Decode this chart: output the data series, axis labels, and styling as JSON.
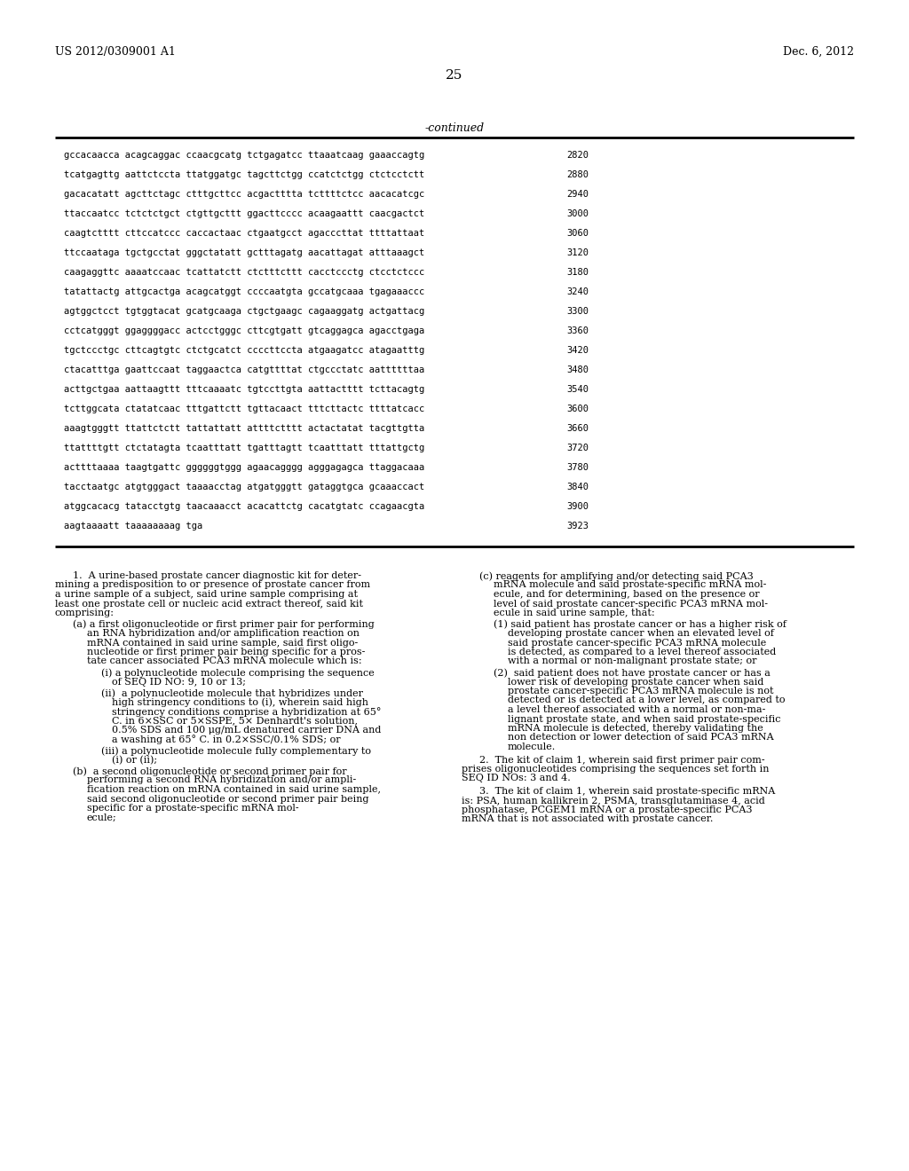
{
  "header_left": "US 2012/0309001 A1",
  "header_right": "Dec. 6, 2012",
  "page_number": "25",
  "continued_label": "-continued",
  "sequence_rows": [
    {
      "seq": "gccacaacca acagcaggac ccaacgcatg tctgagatcc ttaaatcaag gaaaccagtg",
      "num": "2820"
    },
    {
      "seq": "tcatgagttg aattctccta ttatggatgc tagcttctgg ccatctctgg ctctcctctt",
      "num": "2880"
    },
    {
      "seq": "gacacatatt agcttctagc ctttgcttcc acgactttta tcttttctcc aacacatcgc",
      "num": "2940"
    },
    {
      "seq": "ttaccaatcc tctctctgct ctgttgcttt ggacttcccc acaagaattt caacgactct",
      "num": "3000"
    },
    {
      "seq": "caagtctttt cttccatccc caccactaac ctgaatgcct agacccttat ttttattaat",
      "num": "3060"
    },
    {
      "seq": "ttccaataga tgctgcctat gggctatatt gctttagatg aacattagat atttaaagct",
      "num": "3120"
    },
    {
      "seq": "caagaggttc aaaatccaac tcattatctt ctctttcttt cacctccctg ctcctctccc",
      "num": "3180"
    },
    {
      "seq": "tatattactg attgcactga acagcatggt ccccaatgta gccatgcaaa tgagaaaccc",
      "num": "3240"
    },
    {
      "seq": "agtggctcct tgtggtacat gcatgcaaga ctgctgaagc cagaaggatg actgattacg",
      "num": "3300"
    },
    {
      "seq": "cctcatgggt ggaggggacc actcctgggc cttcgtgatt gtcaggagca agacctgaga",
      "num": "3360"
    },
    {
      "seq": "tgctccctgc cttcagtgtc ctctgcatct ccccttccta atgaagatcc atagaatttg",
      "num": "3420"
    },
    {
      "seq": "ctacatttga gaattccaat taggaactca catgttttat ctgccctatc aattttttaa",
      "num": "3480"
    },
    {
      "seq": "acttgctgaa aattaagttt tttcaaaatc tgtccttgta aattactttt tcttacagtg",
      "num": "3540"
    },
    {
      "seq": "tcttggcata ctatatcaac tttgattctt tgttacaact tttcttactc ttttatcacc",
      "num": "3600"
    },
    {
      "seq": "aaagtgggtt ttattctctt tattattatt attttctttt actactatat tacgttgtta",
      "num": "3660"
    },
    {
      "seq": "ttattttgtt ctctatagta tcaatttatt tgatttagtt tcaatttatt tttattgctg",
      "num": "3720"
    },
    {
      "seq": "acttttaaaa taagtgattc ggggggtggg agaacagggg agggagagca ttaggacaaa",
      "num": "3780"
    },
    {
      "seq": "tacctaatgc atgtgggact taaaacctag atgatgggtt gataggtgca gcaaaccact",
      "num": "3840"
    },
    {
      "seq": "atggcacacg tatacctgtg taacaaacct acacattctg cacatgtatc ccagaacgta",
      "num": "3900"
    },
    {
      "seq": "aagtaaaatt taaaaaaaag tga",
      "num": "3923"
    }
  ],
  "bg_color": "#ffffff",
  "text_color": "#000000"
}
